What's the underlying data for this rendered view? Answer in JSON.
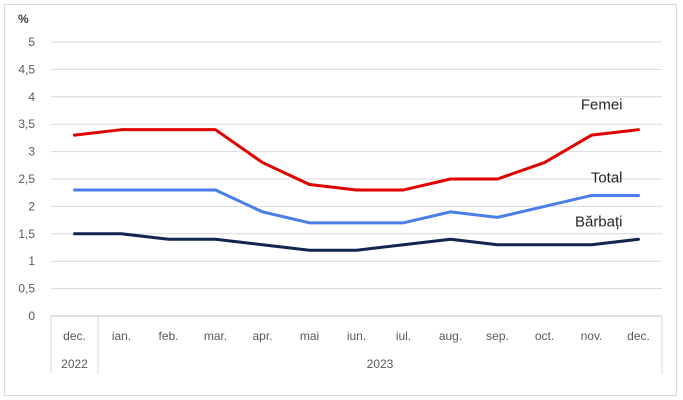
{
  "chart_data": {
    "type": "line",
    "ylabel": "%",
    "ylim": [
      0,
      5
    ],
    "yticks": [
      "0",
      "0,5",
      "1",
      "1,5",
      "2",
      "2,5",
      "3",
      "3,5",
      "4",
      "4,5",
      "5"
    ],
    "categories": [
      "dec.",
      "ian.",
      "feb.",
      "mar.",
      "apr.",
      "mai",
      "iun.",
      "iul.",
      "aug.",
      "sep.",
      "oct.",
      "nov.",
      "dec."
    ],
    "year_groups": [
      {
        "label": "2022",
        "span": [
          0,
          0
        ]
      },
      {
        "label": "2023",
        "span": [
          1,
          12
        ]
      }
    ],
    "grid": true,
    "legend": "none",
    "series": [
      {
        "name": "Femei",
        "color": "#e00000",
        "values": [
          3.3,
          3.4,
          3.4,
          3.4,
          2.8,
          2.4,
          2.3,
          2.3,
          2.5,
          2.5,
          2.8,
          3.3,
          3.4
        ]
      },
      {
        "name": "Total",
        "color": "#4a7ee8",
        "values": [
          2.3,
          2.3,
          2.3,
          2.3,
          1.9,
          1.7,
          1.7,
          1.7,
          1.9,
          1.8,
          2.0,
          2.2,
          2.2
        ]
      },
      {
        "name": "Bărbați",
        "color": "#10254f",
        "values": [
          1.5,
          1.5,
          1.4,
          1.4,
          1.3,
          1.2,
          1.2,
          1.3,
          1.4,
          1.3,
          1.3,
          1.3,
          1.4
        ]
      }
    ]
  }
}
